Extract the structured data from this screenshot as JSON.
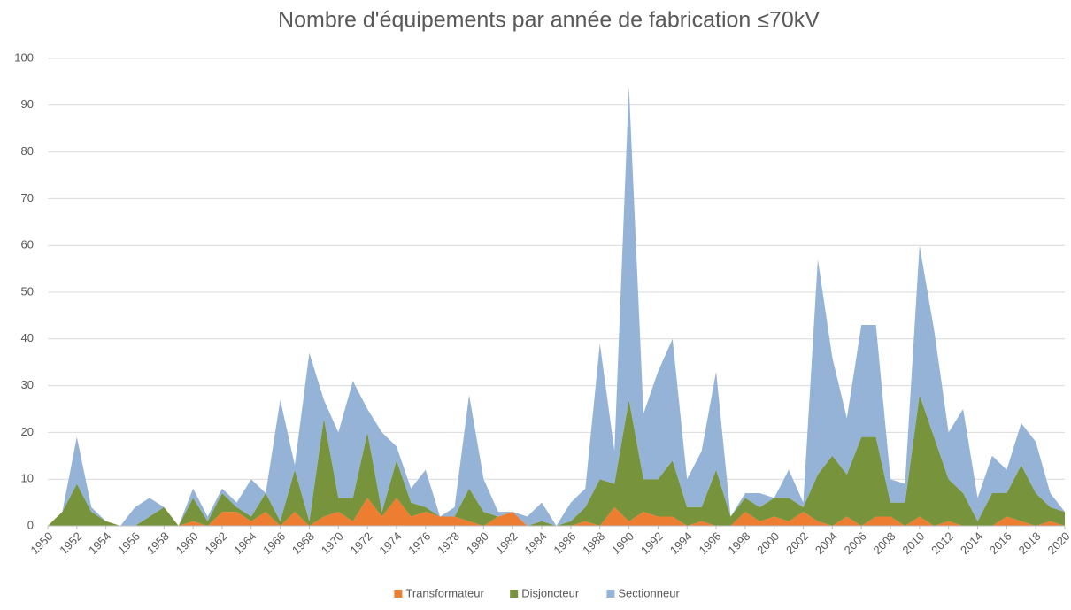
{
  "chart_data": {
    "type": "stacked-area",
    "title": "Nombre d'équipements par année de fabrication  ≤70kV",
    "x": [
      1950,
      1951,
      1952,
      1953,
      1954,
      1955,
      1956,
      1957,
      1958,
      1959,
      1960,
      1961,
      1962,
      1963,
      1964,
      1965,
      1966,
      1967,
      1968,
      1969,
      1970,
      1971,
      1972,
      1973,
      1974,
      1975,
      1976,
      1977,
      1978,
      1979,
      1980,
      1981,
      1982,
      1983,
      1984,
      1985,
      1986,
      1987,
      1988,
      1989,
      1990,
      1991,
      1992,
      1993,
      1994,
      1995,
      1996,
      1997,
      1998,
      1999,
      2000,
      2001,
      2002,
      2003,
      2004,
      2005,
      2006,
      2007,
      2008,
      2009,
      2010,
      2011,
      2012,
      2013,
      2014,
      2015,
      2016,
      2017,
      2018,
      2019,
      2020
    ],
    "series": [
      {
        "name": "Transformateur",
        "color": "#ed7d31",
        "values": [
          0,
          0,
          0,
          0,
          0,
          0,
          0,
          0,
          0,
          0,
          1,
          0,
          3,
          3,
          1,
          3,
          0,
          3,
          0,
          2,
          3,
          1,
          6,
          2,
          6,
          2,
          3,
          2,
          2,
          1,
          0,
          2,
          3,
          0,
          0,
          0,
          0,
          1,
          0,
          4,
          1,
          3,
          2,
          2,
          0,
          1,
          0,
          0,
          3,
          1,
          2,
          1,
          3,
          1,
          0,
          2,
          0,
          2,
          2,
          0,
          2,
          0,
          1,
          0,
          0,
          0,
          2,
          1,
          0,
          1,
          0
        ]
      },
      {
        "name": "Disjoncteur",
        "color": "#77933c",
        "values": [
          0,
          3,
          9,
          3,
          1,
          0,
          0,
          2,
          4,
          0,
          5,
          1,
          4,
          1,
          1,
          4,
          1,
          9,
          1,
          21,
          3,
          5,
          14,
          1,
          8,
          3,
          1,
          0,
          0,
          7,
          3,
          0,
          0,
          0,
          1,
          0,
          1,
          3,
          10,
          5,
          26,
          7,
          8,
          12,
          4,
          3,
          12,
          2,
          3,
          3,
          4,
          5,
          1,
          10,
          15,
          9,
          19,
          17,
          3,
          5,
          26,
          19,
          9,
          7,
          1,
          7,
          5,
          12,
          7,
          3,
          3
        ]
      },
      {
        "name": "Sectionneur",
        "color": "#95b3d7",
        "values": [
          0,
          0,
          10,
          1,
          0,
          0,
          4,
          4,
          0,
          0,
          2,
          1,
          1,
          1,
          8,
          0,
          26,
          1,
          36,
          4,
          14,
          25,
          5,
          17,
          3,
          3,
          8,
          0,
          2,
          20,
          7,
          1,
          0,
          2,
          4,
          0,
          4,
          4,
          29,
          7,
          67,
          14,
          23,
          26,
          6,
          12,
          21,
          0,
          1,
          3,
          0,
          6,
          1,
          46,
          21,
          12,
          24,
          24,
          5,
          4,
          32,
          23,
          10,
          18,
          5,
          8,
          5,
          9,
          11,
          3,
          0
        ]
      }
    ],
    "xlim": [
      1950,
      2020
    ],
    "xticks": [
      1950,
      1952,
      1954,
      1956,
      1958,
      1960,
      1962,
      1964,
      1966,
      1968,
      1970,
      1972,
      1974,
      1976,
      1978,
      1980,
      1982,
      1984,
      1986,
      1988,
      1990,
      1992,
      1994,
      1996,
      1998,
      2000,
      2002,
      2004,
      2006,
      2008,
      2010,
      2012,
      2014,
      2016,
      2018,
      2020
    ],
    "ylim": [
      0,
      100
    ],
    "yticks": [
      0,
      10,
      20,
      30,
      40,
      50,
      60,
      70,
      80,
      90,
      100
    ],
    "grid": true,
    "legend": "bottom"
  }
}
